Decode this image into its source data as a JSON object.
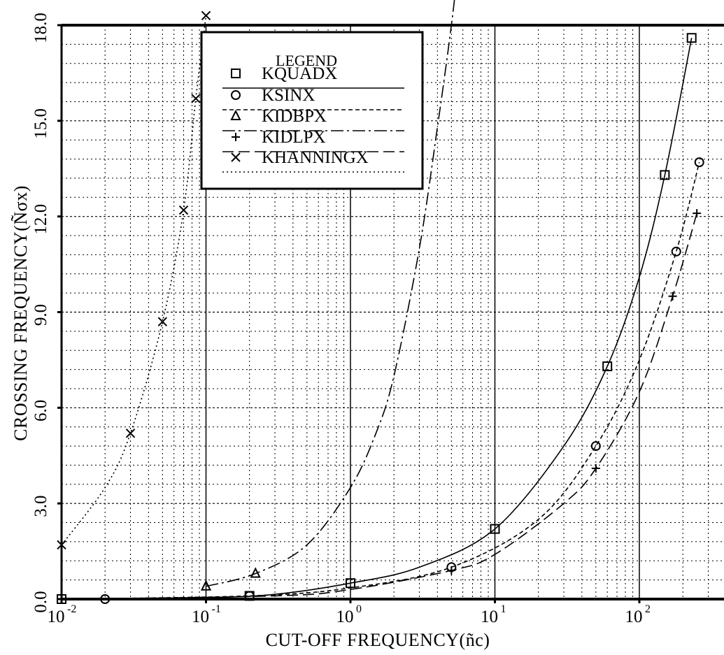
{
  "chart_data": {
    "type": "line",
    "xlabel": "CUT-OFF FREQUENCY(ñc)",
    "ylabel": "CROSSING FREQUENCY(Ñσx)",
    "xscale": "log",
    "xlim": [
      0.01,
      500
    ],
    "ylim": [
      0,
      18
    ],
    "grid": true,
    "x_ticks": [
      {
        "value": 0.01,
        "mantissa": "10",
        "exp": "-2"
      },
      {
        "value": 0.1,
        "mantissa": "10",
        "exp": "-1"
      },
      {
        "value": 1,
        "mantissa": "10",
        "exp": "0"
      },
      {
        "value": 10,
        "mantissa": "10",
        "exp": "1"
      },
      {
        "value": 100,
        "mantissa": "10",
        "exp": "2"
      }
    ],
    "y_ticks": [
      {
        "value": 0,
        "label": "0.0"
      },
      {
        "value": 3,
        "label": "3.0"
      },
      {
        "value": 6,
        "label": "6.0"
      },
      {
        "value": 9,
        "label": "9.0"
      },
      {
        "value": 12,
        "label": "12.0"
      },
      {
        "value": 15,
        "label": "15.0"
      },
      {
        "value": 18,
        "label": "18.0"
      }
    ],
    "legend": {
      "title": "LEGEND",
      "position": "top-left",
      "entries": [
        "KQUADX",
        "KSINX",
        "KIDBPX",
        "KIDLPX",
        "KHANNINGX"
      ]
    },
    "series": [
      {
        "name": "KQUADX",
        "marker": "square",
        "dash": "solid",
        "points": [
          [
            0.01,
            0.0
          ],
          [
            0.2,
            0.1
          ],
          [
            1.0,
            0.5
          ],
          [
            10.0,
            2.2
          ],
          [
            60.0,
            7.3
          ],
          [
            150.0,
            13.3
          ],
          [
            230.0,
            17.6
          ]
        ],
        "curve": [
          [
            0.01,
            0.0
          ],
          [
            0.1,
            0.05
          ],
          [
            0.3,
            0.15
          ],
          [
            1.0,
            0.5
          ],
          [
            3.0,
            1.0
          ],
          [
            10.0,
            2.2
          ],
          [
            30.0,
            4.8
          ],
          [
            60.0,
            7.3
          ],
          [
            100.0,
            10.1
          ],
          [
            150.0,
            13.3
          ],
          [
            230.0,
            17.6
          ]
        ]
      },
      {
        "name": "KSINX",
        "marker": "circle",
        "dash": "short-dash",
        "points": [
          [
            0.02,
            0.0
          ],
          [
            0.2,
            0.1
          ],
          [
            5.0,
            1.0
          ],
          [
            50.0,
            4.8
          ],
          [
            180.0,
            10.9
          ],
          [
            260.0,
            13.7
          ]
        ],
        "curve": [
          [
            0.01,
            0.0
          ],
          [
            0.2,
            0.1
          ],
          [
            1.0,
            0.35
          ],
          [
            5.0,
            1.0
          ],
          [
            20.0,
            2.5
          ],
          [
            50.0,
            4.8
          ],
          [
            100.0,
            7.5
          ],
          [
            180.0,
            10.9
          ],
          [
            260.0,
            13.7
          ]
        ]
      },
      {
        "name": "KIDBPX",
        "marker": "triangle",
        "dash": "long-dash-dot",
        "points": [
          [
            0.1,
            0.4
          ],
          [
            0.22,
            0.8
          ]
        ],
        "curve": [
          [
            0.1,
            0.4
          ],
          [
            0.22,
            0.8
          ],
          [
            0.5,
            1.7
          ],
          [
            1.0,
            3.5
          ],
          [
            1.5,
            5.2
          ],
          [
            2.0,
            7.0
          ],
          [
            3.0,
            11.0
          ],
          [
            4.0,
            14.8
          ],
          [
            5.0,
            18.0
          ],
          [
            5.6,
            20.0
          ]
        ]
      },
      {
        "name": "KIDLPX",
        "marker": "plus",
        "dash": "long-dash",
        "points": [
          [
            5.0,
            0.9
          ],
          [
            50.0,
            4.1
          ],
          [
            170.0,
            9.5
          ],
          [
            250.0,
            12.1
          ]
        ],
        "curve": [
          [
            0.01,
            0.0
          ],
          [
            0.3,
            0.1
          ],
          [
            1.0,
            0.3
          ],
          [
            5.0,
            0.9
          ],
          [
            10.0,
            1.4
          ],
          [
            30.0,
            3.0
          ],
          [
            50.0,
            4.1
          ],
          [
            100.0,
            6.5
          ],
          [
            170.0,
            9.5
          ],
          [
            250.0,
            12.1
          ]
        ]
      },
      {
        "name": "KHANNINGX",
        "marker": "x",
        "dash": "dotted",
        "points": [
          [
            0.01,
            1.7
          ],
          [
            0.03,
            5.2
          ],
          [
            0.05,
            8.7
          ],
          [
            0.07,
            12.2
          ],
          [
            0.085,
            15.7
          ],
          [
            0.1,
            18.3
          ]
        ],
        "curve": [
          [
            0.01,
            1.7
          ],
          [
            0.02,
            3.5
          ],
          [
            0.03,
            5.2
          ],
          [
            0.05,
            8.7
          ],
          [
            0.07,
            12.2
          ],
          [
            0.085,
            15.7
          ],
          [
            0.1,
            18.3
          ]
        ]
      }
    ]
  }
}
